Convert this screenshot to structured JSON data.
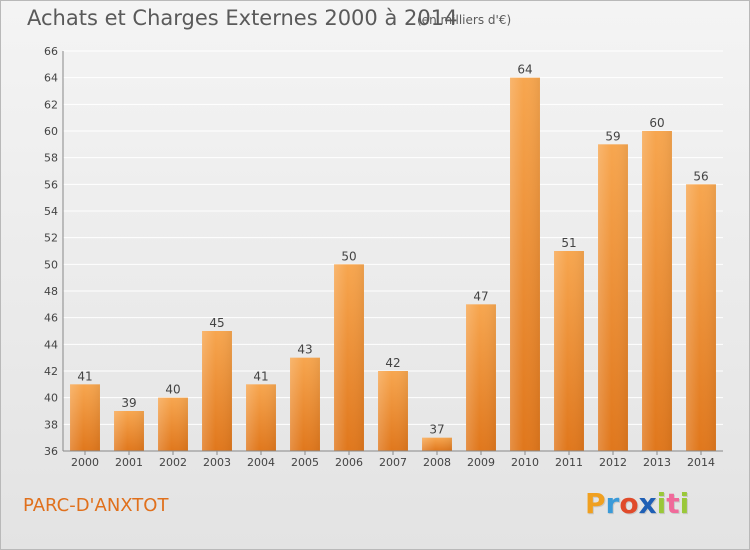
{
  "header": {
    "title": "Achats et Charges Externes 2000 à 2014",
    "subtitle": "(en milliers d'€)"
  },
  "footer": {
    "commune": "PARC-D'ANXTOT",
    "logo_text": "Proxiti"
  },
  "colors": {
    "bar_top": "#f7a64f",
    "bar_bottom": "#e0771c",
    "text": "#5a5a5a",
    "commune": "#e0701c",
    "grid": "#ffffff"
  },
  "chart_data": {
    "type": "bar",
    "title": "Achats et Charges Externes 2000 à 2014",
    "subtitle": "(en milliers d'€)",
    "categories": [
      "2000",
      "2001",
      "2002",
      "2003",
      "2004",
      "2005",
      "2006",
      "2007",
      "2008",
      "2009",
      "2010",
      "2011",
      "2012",
      "2013",
      "2014"
    ],
    "values": [
      41,
      39,
      40,
      45,
      41,
      43,
      50,
      42,
      37,
      47,
      64,
      51,
      59,
      60,
      56
    ],
    "ylim": [
      36,
      66
    ],
    "yticks": [
      36,
      38,
      40,
      42,
      44,
      46,
      48,
      50,
      52,
      54,
      56,
      58,
      60,
      62,
      64,
      66
    ],
    "grid": true,
    "data_labels": true
  }
}
